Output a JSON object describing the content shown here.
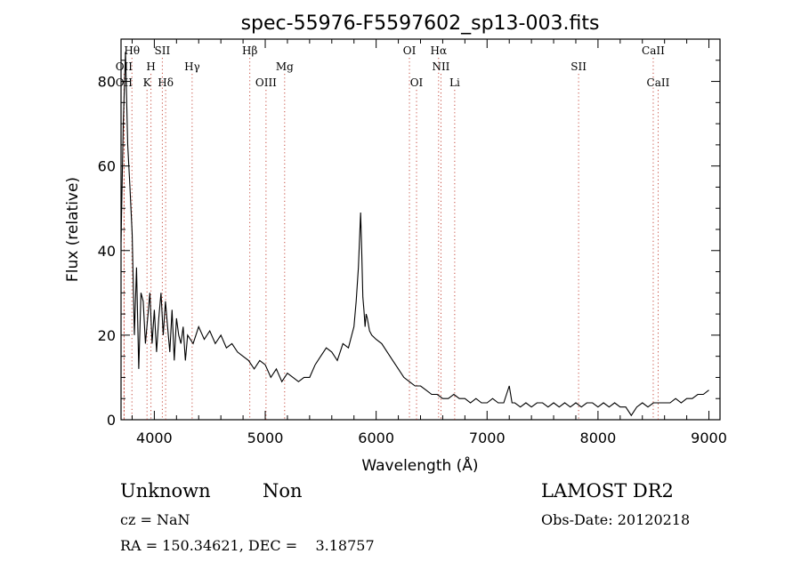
{
  "chart_data": {
    "type": "line",
    "title": "spec-55976-F5597602_sp13-003.fits",
    "xlabel": "Wavelength (Å)",
    "ylabel": "Flux (relative)",
    "xlim": [
      3700,
      9100
    ],
    "ylim": [
      0,
      90
    ],
    "xticks": [
      4000,
      5000,
      6000,
      7000,
      8000,
      9000
    ],
    "yticks": [
      0,
      20,
      40,
      60,
      80
    ],
    "grid": false,
    "series": [
      {
        "x": [
          3700,
          3720,
          3740,
          3760,
          3780,
          3800,
          3820,
          3840,
          3860,
          3880,
          3900,
          3920,
          3940,
          3960,
          3980,
          4000,
          4020,
          4040,
          4060,
          4080,
          4100,
          4120,
          4140,
          4160,
          4180,
          4200,
          4220,
          4240,
          4260,
          4280,
          4300,
          4350,
          4400,
          4450,
          4500,
          4550,
          4600,
          4650,
          4700,
          4750,
          4800,
          4850,
          4900,
          4950,
          5000,
          5050,
          5100,
          5150,
          5200,
          5250,
          5300,
          5350,
          5400,
          5450,
          5500,
          5550,
          5600,
          5650,
          5700,
          5750,
          5780,
          5800,
          5820,
          5840,
          5860,
          5870,
          5880,
          5890,
          5900,
          5910,
          5920,
          5940,
          5960,
          6000,
          6050,
          6100,
          6150,
          6200,
          6250,
          6300,
          6350,
          6400,
          6450,
          6500,
          6550,
          6600,
          6650,
          6700,
          6750,
          6800,
          6850,
          6900,
          6950,
          7000,
          7050,
          7100,
          7150,
          7200,
          7225,
          7250,
          7300,
          7350,
          7400,
          7450,
          7500,
          7550,
          7600,
          7650,
          7700,
          7750,
          7800,
          7850,
          7900,
          7950,
          8000,
          8050,
          8100,
          8150,
          8200,
          8250,
          8300,
          8350,
          8400,
          8450,
          8500,
          8550,
          8600,
          8650,
          8700,
          8750,
          8800,
          8850,
          8900,
          8950,
          9000
        ],
        "y": [
          42,
          70,
          87,
          65,
          55,
          44,
          20,
          36,
          12,
          30,
          28,
          18,
          24,
          30,
          18,
          26,
          16,
          24,
          30,
          20,
          28,
          22,
          16,
          26,
          14,
          24,
          20,
          18,
          22,
          14,
          20,
          18,
          22,
          19,
          21,
          18,
          20,
          17,
          18,
          16,
          15,
          14,
          12,
          14,
          13,
          10,
          12,
          9,
          11,
          10,
          9,
          10,
          10,
          13,
          15,
          17,
          16,
          14,
          18,
          17,
          20,
          22,
          28,
          36,
          49,
          40,
          29,
          26,
          22,
          25,
          24,
          21,
          20,
          19,
          18,
          16,
          14,
          12,
          10,
          9,
          8,
          8,
          7,
          6,
          6,
          5,
          5,
          6,
          5,
          5,
          4,
          5,
          4,
          4,
          5,
          4,
          4,
          8,
          4,
          4,
          3,
          4,
          3,
          4,
          4,
          3,
          4,
          3,
          4,
          3,
          4,
          3,
          4,
          4,
          3,
          4,
          3,
          4,
          3,
          3,
          1,
          3,
          4,
          3,
          4,
          4,
          4,
          4,
          5,
          4,
          5,
          5,
          6,
          6,
          7
        ]
      }
    ],
    "lines": [
      {
        "label": "Hθ",
        "x": 3798,
        "row": 1
      },
      {
        "label": "OII",
        "x": 3727,
        "row": 2
      },
      {
        "label": "OII",
        "x": 3727,
        "row": 3
      },
      {
        "label": "SII",
        "x": 4072,
        "row": 1
      },
      {
        "label": "H",
        "x": 3970,
        "row": 2
      },
      {
        "label": "K",
        "x": 3934,
        "row": 3
      },
      {
        "label": "Hδ",
        "x": 4102,
        "row": 3
      },
      {
        "label": "Hγ",
        "x": 4341,
        "row": 2
      },
      {
        "label": "Hβ",
        "x": 4861,
        "row": 1
      },
      {
        "label": "OIII",
        "x": 5007,
        "row": 3
      },
      {
        "label": "Mg",
        "x": 5175,
        "row": 2
      },
      {
        "label": "OI",
        "x": 6300,
        "row": 1
      },
      {
        "label": "OI",
        "x": 6364,
        "row": 3
      },
      {
        "label": "Hα",
        "x": 6563,
        "row": 1
      },
      {
        "label": "NII",
        "x": 6584,
        "row": 2
      },
      {
        "label": "Li",
        "x": 6708,
        "row": 3
      },
      {
        "label": "SII",
        "x": 7825,
        "row": 2
      },
      {
        "label": "CaII",
        "x": 8498,
        "row": 1
      },
      {
        "label": "CaII",
        "x": 8542,
        "row": 3
      }
    ]
  },
  "info": {
    "class": "Unknown",
    "subclass": "Non",
    "cz": "cz = NaN",
    "coords": "RA = 150.34621, DEC =    3.18757",
    "survey": "LAMOST DR2",
    "obs_date": "Obs-Date: 20120218"
  }
}
